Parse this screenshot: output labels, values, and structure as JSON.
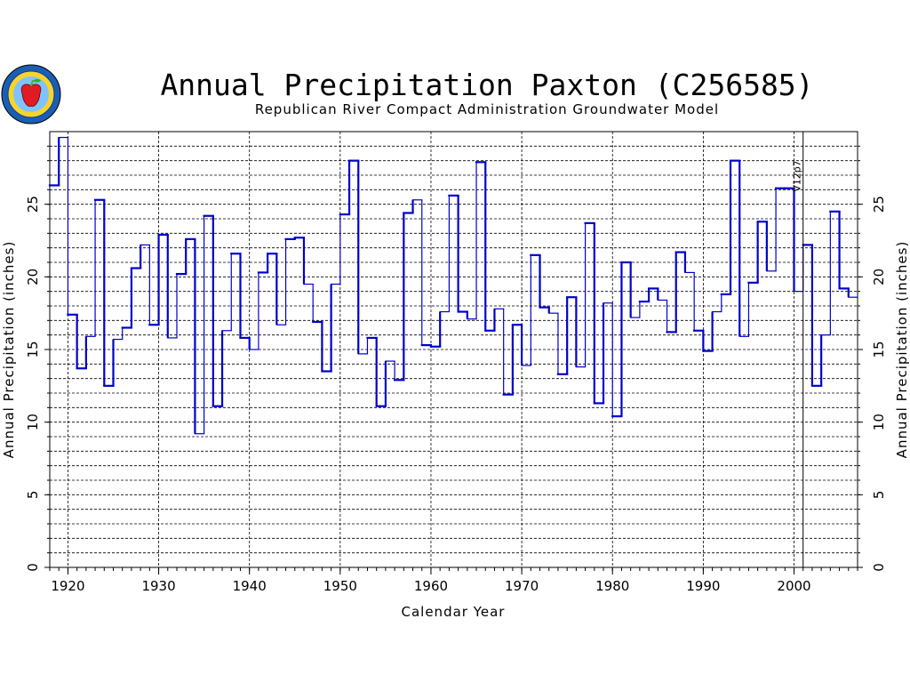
{
  "chart_data": {
    "type": "step",
    "title": "Annual Precipitation Paxton (C256585)",
    "subtitle": "Republican River Compact Administration Groundwater Model",
    "xlabel": "Calendar Year",
    "ylabel": "Annual Precipitation (inches)",
    "xlim": [
      1918,
      2007
    ],
    "ylim": [
      0,
      30
    ],
    "x_ticks": [
      1920,
      1930,
      1940,
      1950,
      1960,
      1970,
      1980,
      1990,
      2000
    ],
    "y_ticks": [
      0,
      5,
      10,
      15,
      20,
      25
    ],
    "grid": true,
    "line_color": "#0000cc",
    "annotation": {
      "label": "V12p7",
      "x": 2001
    },
    "series": [
      {
        "years": [
          1918,
          1919,
          1920,
          1921,
          1922,
          1923,
          1924,
          1925,
          1926,
          1927,
          1928,
          1929,
          1930,
          1931,
          1932,
          1933,
          1934,
          1935,
          1936,
          1937,
          1938,
          1939,
          1940,
          1941,
          1942,
          1943,
          1944,
          1945,
          1946,
          1947,
          1948,
          1949,
          1950,
          1951,
          1952,
          1953,
          1954,
          1955,
          1956,
          1957,
          1958,
          1959,
          1960,
          1961,
          1962,
          1963,
          1964,
          1965,
          1966,
          1967,
          1968,
          1969,
          1970,
          1971,
          1972,
          1973,
          1974,
          1975,
          1976,
          1977,
          1978,
          1979,
          1980,
          1981,
          1982,
          1983,
          1984,
          1985,
          1986,
          1987,
          1988,
          1989,
          1990,
          1991,
          1992,
          1993,
          1994,
          1995,
          1996,
          1997,
          1998,
          1999,
          2000,
          2001,
          2002,
          2003,
          2004,
          2005,
          2006
        ],
        "values": [
          26.3,
          29.6,
          17.4,
          13.7,
          15.9,
          25.3,
          12.5,
          15.7,
          16.5,
          20.6,
          22.2,
          16.7,
          22.9,
          15.8,
          20.2,
          22.6,
          9.2,
          24.2,
          11.1,
          16.3,
          21.6,
          15.8,
          15.0,
          20.3,
          21.6,
          16.7,
          22.6,
          22.7,
          19.5,
          16.9,
          13.5,
          19.5,
          24.3,
          28.0,
          14.7,
          15.8,
          11.1,
          14.2,
          12.9,
          24.4,
          25.3,
          15.3,
          15.2,
          17.6,
          25.6,
          17.6,
          17.1,
          27.9,
          16.3,
          17.8,
          11.9,
          16.7,
          13.9,
          21.5,
          17.9,
          17.5,
          13.3,
          18.6,
          13.8,
          23.7,
          11.3,
          18.2,
          10.4,
          21.0,
          17.2,
          18.3,
          19.2,
          18.4,
          16.2,
          21.7,
          20.3,
          16.3,
          14.9,
          17.6,
          18.8,
          28.0,
          15.9,
          19.6,
          23.8,
          20.4,
          26.1,
          26.1,
          19.0,
          22.2,
          12.5,
          16.0,
          24.5,
          19.2,
          18.6
        ]
      }
    ]
  }
}
